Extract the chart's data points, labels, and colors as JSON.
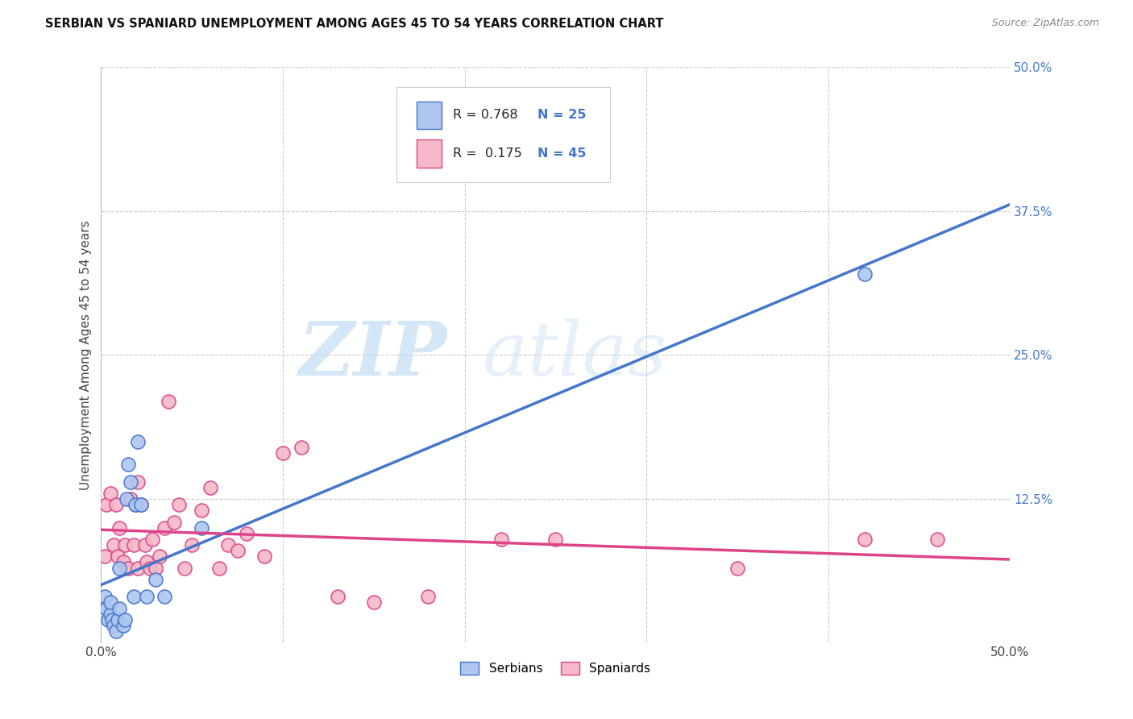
{
  "title": "SERBIAN VS SPANIARD UNEMPLOYMENT AMONG AGES 45 TO 54 YEARS CORRELATION CHART",
  "source": "Source: ZipAtlas.com",
  "ylabel": "Unemployment Among Ages 45 to 54 years",
  "xlim": [
    0.0,
    0.5
  ],
  "ylim": [
    0.0,
    0.5
  ],
  "ytick_vals": [
    0.0,
    0.125,
    0.25,
    0.375,
    0.5
  ],
  "ytick_labels": [
    "",
    "12.5%",
    "25.0%",
    "37.5%",
    "50.0%"
  ],
  "xtick_vals": [
    0.0,
    0.1,
    0.2,
    0.3,
    0.4,
    0.5
  ],
  "xtick_labels_show": [
    "0.0%",
    "",
    "",
    "",
    "",
    "50.0%"
  ],
  "background_color": "#ffffff",
  "grid_color": "#cccccc",
  "serbian_color": "#aec6f0",
  "spaniard_color": "#f5b8c8",
  "serbian_line_color": "#4477cc",
  "spaniard_line_color": "#dd4488",
  "serbian_R": 0.768,
  "serbian_N": 25,
  "spaniard_R": 0.175,
  "spaniard_N": 45,
  "serbian_x": [
    0.002,
    0.003,
    0.004,
    0.005,
    0.005,
    0.006,
    0.007,
    0.008,
    0.009,
    0.01,
    0.01,
    0.012,
    0.013,
    0.014,
    0.015,
    0.016,
    0.018,
    0.019,
    0.02,
    0.022,
    0.025,
    0.03,
    0.035,
    0.055,
    0.42
  ],
  "serbian_y": [
    0.04,
    0.03,
    0.02,
    0.025,
    0.035,
    0.02,
    0.015,
    0.01,
    0.02,
    0.03,
    0.065,
    0.015,
    0.02,
    0.125,
    0.155,
    0.14,
    0.04,
    0.12,
    0.175,
    0.12,
    0.04,
    0.055,
    0.04,
    0.1,
    0.32
  ],
  "spaniard_x": [
    0.002,
    0.003,
    0.005,
    0.007,
    0.008,
    0.009,
    0.01,
    0.012,
    0.013,
    0.015,
    0.016,
    0.018,
    0.019,
    0.02,
    0.02,
    0.022,
    0.024,
    0.025,
    0.027,
    0.028,
    0.03,
    0.032,
    0.035,
    0.037,
    0.04,
    0.043,
    0.046,
    0.05,
    0.055,
    0.06,
    0.065,
    0.07,
    0.075,
    0.08,
    0.09,
    0.1,
    0.11,
    0.13,
    0.15,
    0.18,
    0.22,
    0.25,
    0.35,
    0.42,
    0.46
  ],
  "spaniard_y": [
    0.075,
    0.12,
    0.13,
    0.085,
    0.12,
    0.075,
    0.1,
    0.07,
    0.085,
    0.065,
    0.125,
    0.085,
    0.12,
    0.065,
    0.14,
    0.12,
    0.085,
    0.07,
    0.065,
    0.09,
    0.065,
    0.075,
    0.1,
    0.21,
    0.105,
    0.12,
    0.065,
    0.085,
    0.115,
    0.135,
    0.065,
    0.085,
    0.08,
    0.095,
    0.075,
    0.165,
    0.17,
    0.04,
    0.035,
    0.04,
    0.09,
    0.09,
    0.065,
    0.09,
    0.09
  ],
  "watermark_zip": "ZIP",
  "watermark_atlas": "atlas",
  "watermark_color": "#d0e8f8"
}
